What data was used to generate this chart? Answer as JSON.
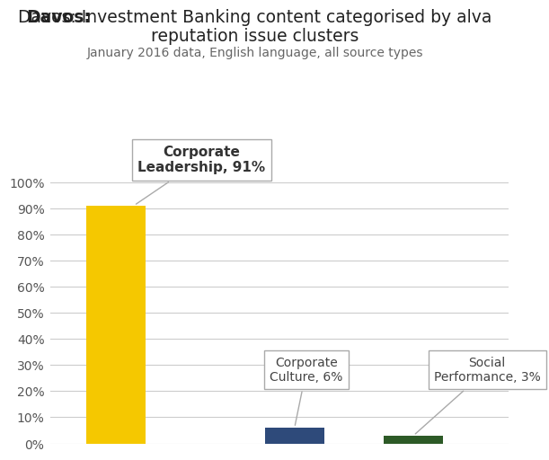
{
  "title_bold": "Davos:",
  "title_rest": " Investment Banking content categorised by alva\nreputation issue clusters",
  "subtitle": "January 2016 data, English language, all source types",
  "values": [
    91,
    6,
    3
  ],
  "bar_colors": [
    "#F5C800",
    "#2E4A7A",
    "#2D5A27"
  ],
  "ylim": [
    0,
    100
  ],
  "yticks": [
    0,
    10,
    20,
    30,
    40,
    50,
    60,
    70,
    80,
    90,
    100
  ],
  "ytick_labels": [
    "0%",
    "10%",
    "20%",
    "30%",
    "40%",
    "50%",
    "60%",
    "70%",
    "80%",
    "90%",
    "100%"
  ],
  "ann1_text": "Corporate\nLeadership, 91%",
  "ann2_text": "Corporate\nCulture, 6%",
  "ann3_text": "Social\nPerformance, 3%",
  "background_color": "#FFFFFF",
  "bar_width": 0.5,
  "x_positions": [
    0,
    1.5,
    2.5
  ],
  "xlim": [
    -0.55,
    3.3
  ]
}
